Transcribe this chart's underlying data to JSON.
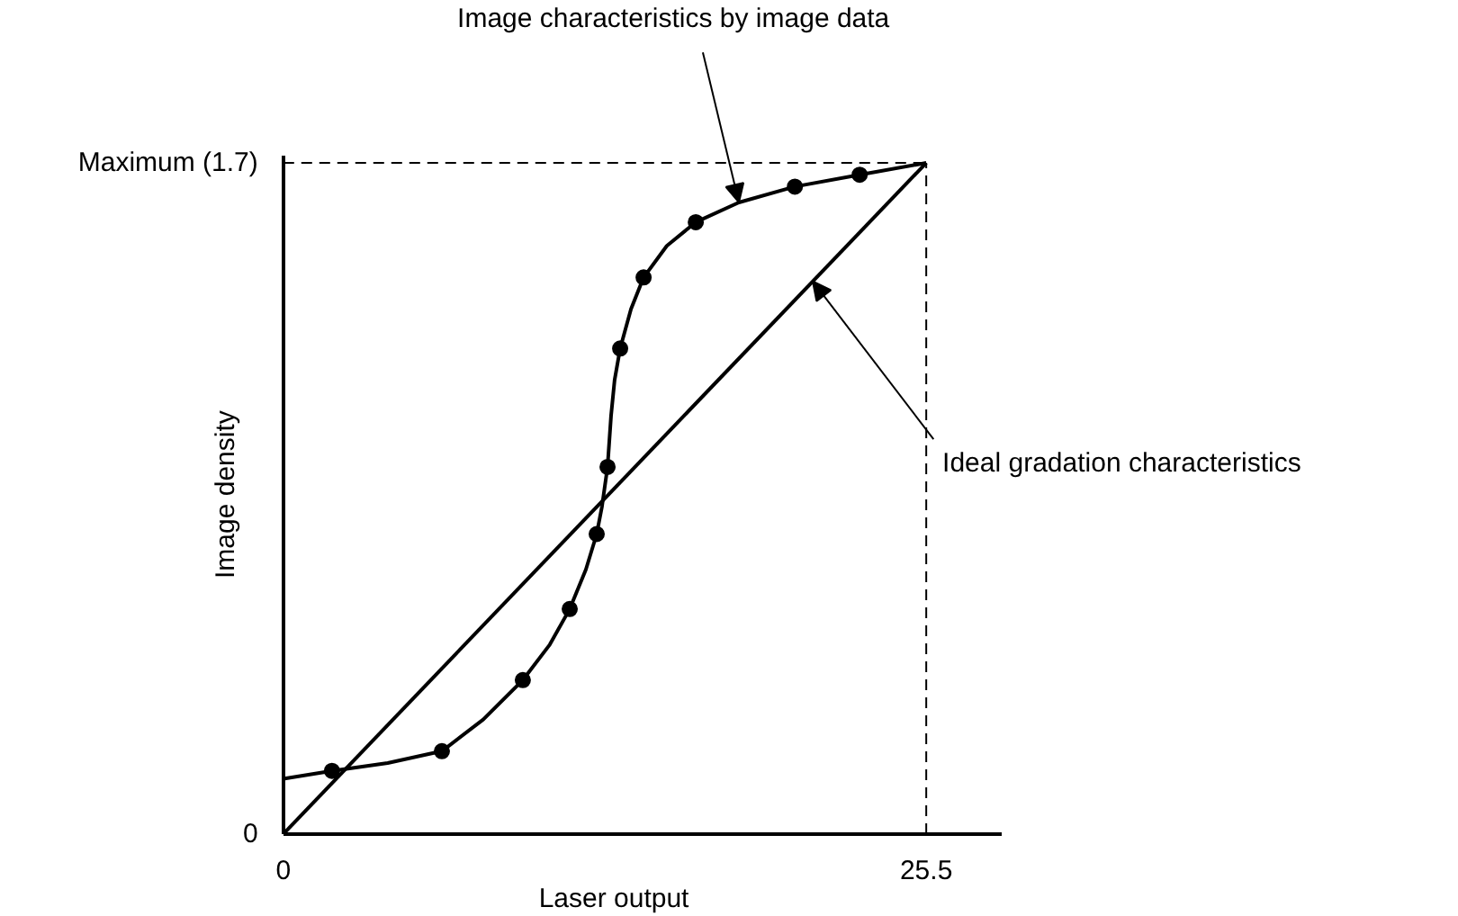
{
  "chart_data": {
    "type": "line",
    "xlabel": "Laser output",
    "ylabel": "Image density",
    "xlim": [
      0,
      28.5
    ],
    "ylim": [
      0,
      1.72
    ],
    "xticks": [
      0,
      25.5
    ],
    "yticks": [
      0,
      {
        "value": 1.7,
        "label": "Maximum (1.7)"
      }
    ],
    "series": [
      {
        "color": "#000000",
        "marker": "none",
        "x": [
          0,
          1.93,
          4.14,
          6.29,
          7.93,
          9.5,
          10.57,
          11.36,
          12.0,
          12.43,
          12.64,
          12.86,
          13.0,
          13.14,
          13.36,
          13.79,
          14.29,
          15.21,
          16.36,
          18.07,
          20.29,
          22.86,
          25.5
        ],
        "values": [
          0.14,
          0.16,
          0.18,
          0.21,
          0.29,
          0.39,
          0.48,
          0.57,
          0.67,
          0.76,
          0.83,
          0.93,
          1.06,
          1.15,
          1.23,
          1.33,
          1.41,
          1.49,
          1.55,
          1.6,
          1.64,
          1.67,
          1.7
        ]
      },
      {
        "type": "scatter",
        "color": "#000000",
        "marker": "circle",
        "x": [
          1.93,
          6.29,
          9.5,
          11.36,
          12.43,
          12.86,
          13.36,
          14.29,
          16.36,
          20.29,
          22.86
        ],
        "values": [
          0.16,
          0.21,
          0.39,
          0.57,
          0.76,
          0.93,
          1.23,
          1.41,
          1.55,
          1.64,
          1.67
        ]
      },
      {
        "type": "line",
        "color": "#000000",
        "marker": "none",
        "x": [
          0,
          25.5
        ],
        "values": [
          0,
          1.7
        ]
      }
    ],
    "ref_lines": [
      {
        "axis": "y",
        "value": 1.7,
        "line_style": "dashed",
        "color": "#000000"
      },
      {
        "axis": "x",
        "value": 25.5,
        "line_style": "dashed",
        "color": "#000000"
      }
    ],
    "annotations": [
      {
        "text": "Image characteristics by image data",
        "x": 18.07,
        "y": 1.6
      },
      {
        "text": "Ideal gradation characteristics",
        "x": 21.0,
        "y": 1.4
      }
    ],
    "grid": false
  }
}
